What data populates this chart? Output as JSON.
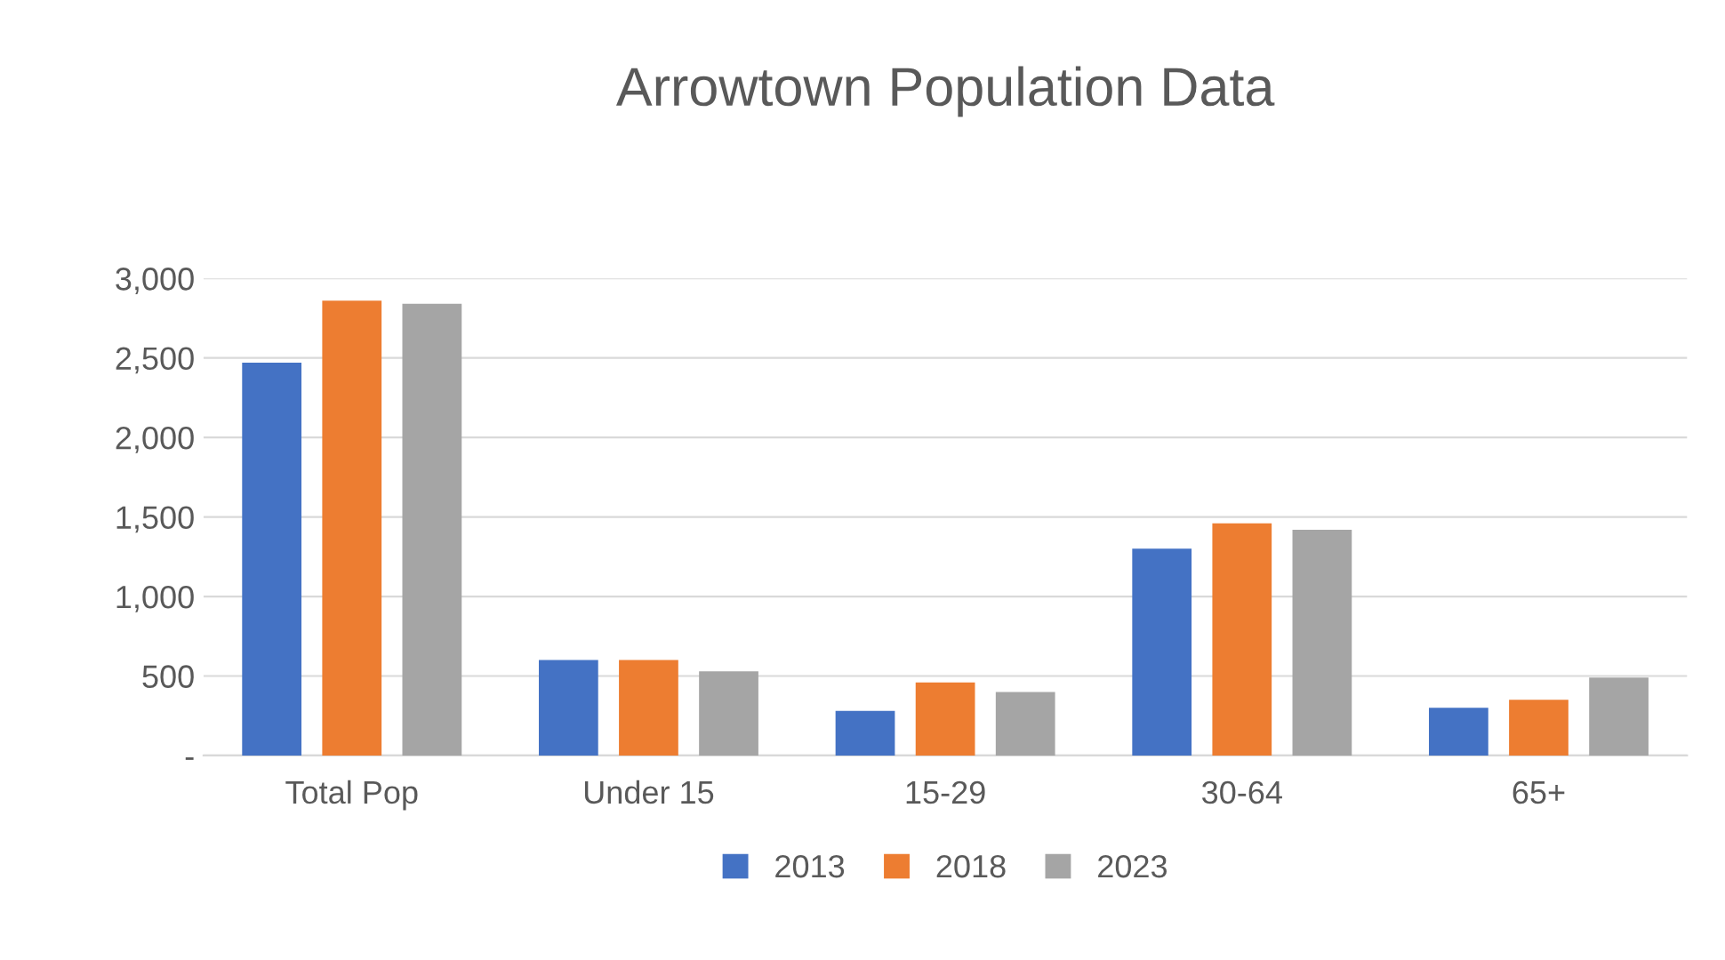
{
  "chart_data": {
    "type": "bar",
    "title": "Arrowtown Population Data",
    "categories": [
      "Total Pop",
      "Under 15",
      "15-29",
      "30-64",
      "65+"
    ],
    "series": [
      {
        "name": "2013",
        "color": "#4472c4",
        "values": [
          2470,
          600,
          280,
          1300,
          300
        ]
      },
      {
        "name": "2018",
        "color": "#ed7d31",
        "values": [
          2860,
          600,
          460,
          1460,
          350
        ]
      },
      {
        "name": "2023",
        "color": "#a5a5a5",
        "values": [
          2840,
          530,
          400,
          1420,
          490
        ]
      }
    ],
    "ylim": [
      0,
      3000
    ],
    "yticks": [
      {
        "value": 0,
        "label": "-"
      },
      {
        "value": 500,
        "label": "500"
      },
      {
        "value": 1000,
        "label": "1,000"
      },
      {
        "value": 1500,
        "label": "1,500"
      },
      {
        "value": 2000,
        "label": "2,000"
      },
      {
        "value": 2500,
        "label": "2,500"
      },
      {
        "value": 3000,
        "label": "3,000"
      }
    ],
    "grid": "y",
    "legend": "bottom"
  }
}
